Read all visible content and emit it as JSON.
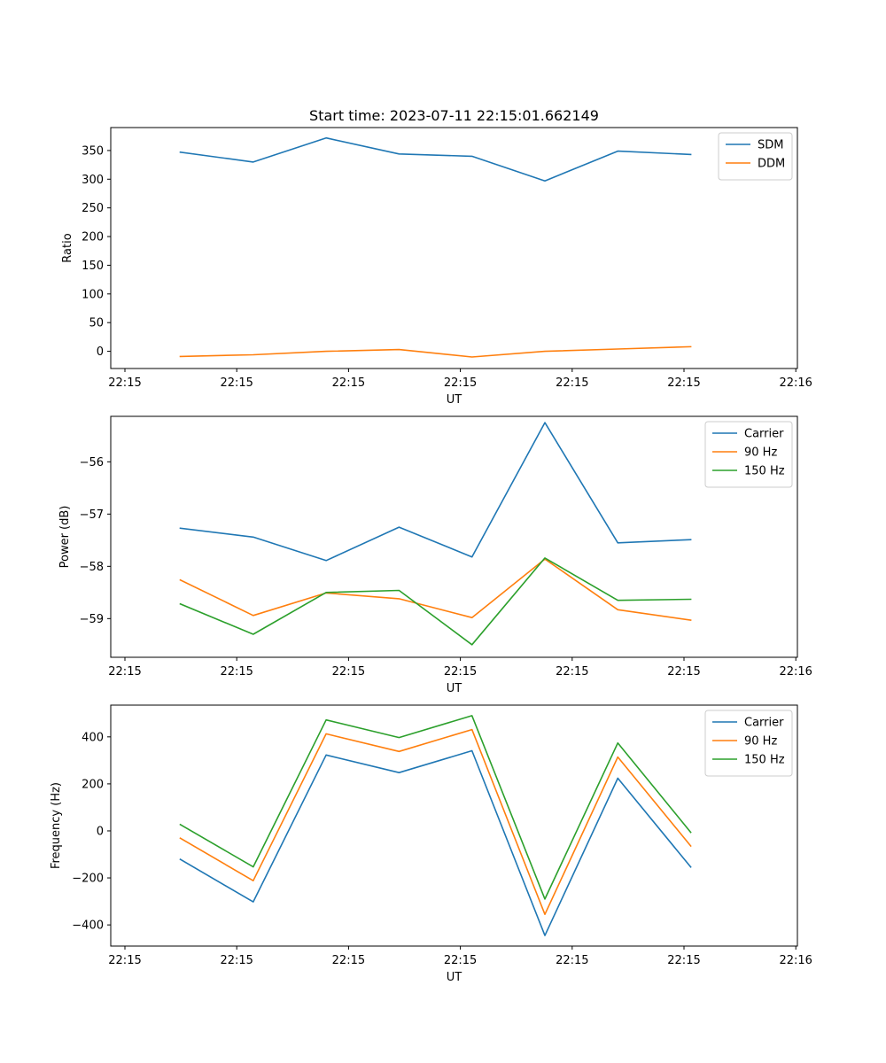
{
  "title": "Start time: 2023-07-11 22:15:01.662149",
  "colors": {
    "blue": "#1f77b4",
    "orange": "#ff7f0e",
    "green": "#2ca02c"
  },
  "chart_data": [
    {
      "type": "line",
      "xlabel": "UT",
      "ylabel": "Ratio",
      "x_ticks": [
        "22:15",
        "22:15",
        "22:15",
        "22:15",
        "22:15",
        "22:15",
        "22:16"
      ],
      "ylim": [
        -30,
        390
      ],
      "y_ticks": [
        0,
        50,
        100,
        150,
        200,
        250,
        300,
        350
      ],
      "legend_position": "top-right",
      "series": [
        {
          "name": "SDM",
          "color": "#1f77b4",
          "values": [
            347,
            330,
            372,
            344,
            340,
            297,
            349,
            343
          ]
        },
        {
          "name": "DDM",
          "color": "#ff7f0e",
          "values": [
            -9,
            -6,
            0,
            3,
            -10,
            0,
            4,
            8
          ]
        }
      ]
    },
    {
      "type": "line",
      "xlabel": "UT",
      "ylabel": "Power (dB)",
      "x_ticks": [
        "22:15",
        "22:15",
        "22:15",
        "22:15",
        "22:15",
        "22:15",
        "22:16"
      ],
      "ylim": [
        -59.74,
        -55.13
      ],
      "y_ticks": [
        -59,
        -58,
        -57,
        -56
      ],
      "y_tick_labels": [
        "−59",
        "−58",
        "−57",
        "−56"
      ],
      "legend_position": "top-right",
      "series": [
        {
          "name": "Carrier",
          "color": "#1f77b4",
          "values": [
            -57.27,
            -57.44,
            -57.89,
            -57.25,
            -57.82,
            -55.25,
            -57.55,
            -57.49
          ]
        },
        {
          "name": "90 Hz",
          "color": "#ff7f0e",
          "values": [
            -58.26,
            -58.94,
            -58.51,
            -58.62,
            -58.98,
            -57.86,
            -58.83,
            -59.03
          ]
        },
        {
          "name": "150 Hz",
          "color": "#2ca02c",
          "values": [
            -58.72,
            -59.3,
            -58.5,
            -58.46,
            -59.5,
            -57.84,
            -58.65,
            -58.63
          ]
        }
      ]
    },
    {
      "type": "line",
      "xlabel": "UT",
      "ylabel": "Frequency (Hz)",
      "x_ticks": [
        "22:15",
        "22:15",
        "22:15",
        "22:15",
        "22:15",
        "22:15",
        "22:16"
      ],
      "ylim": [
        -490,
        535
      ],
      "y_ticks": [
        -400,
        -200,
        0,
        200,
        400
      ],
      "y_tick_labels": [
        "−400",
        "−200",
        "0",
        "200",
        "400"
      ],
      "legend_position": "top-right",
      "series": [
        {
          "name": "Carrier",
          "color": "#1f77b4",
          "values": [
            -121,
            -302,
            323,
            248,
            341,
            -445,
            224,
            -154
          ]
        },
        {
          "name": "90 Hz",
          "color": "#ff7f0e",
          "values": [
            -31,
            -212,
            413,
            338,
            431,
            -355,
            314,
            -64
          ]
        },
        {
          "name": "150 Hz",
          "color": "#2ca02c",
          "values": [
            27,
            -153,
            472,
            397,
            490,
            -290,
            374,
            -6
          ]
        }
      ]
    }
  ]
}
